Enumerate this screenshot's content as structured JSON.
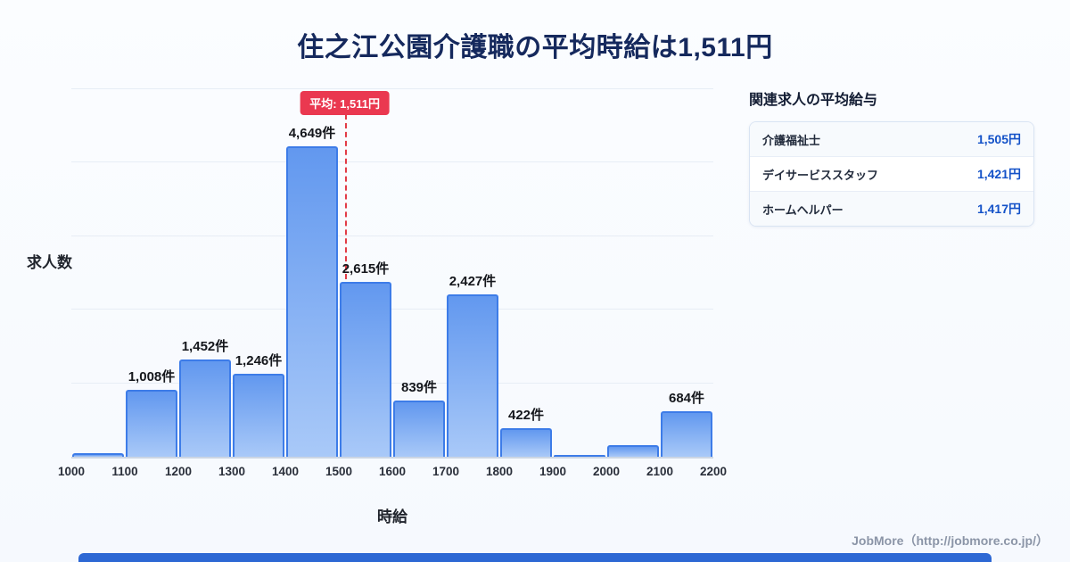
{
  "title": "住之江公園介護職の平均時給は1,511円",
  "chart_data": {
    "type": "bar",
    "title": "住之江公園介護職の平均時給は1,511円",
    "xlabel": "時給",
    "ylabel": "求人数",
    "x_ticks": [
      1000,
      1100,
      1200,
      1300,
      1400,
      1500,
      1600,
      1700,
      1800,
      1900,
      2000,
      2100,
      2200
    ],
    "bins": [
      "1000-1100",
      "1100-1200",
      "1200-1300",
      "1300-1400",
      "1400-1500",
      "1500-1600",
      "1600-1700",
      "1700-1800",
      "1800-1900",
      "1900-2000",
      "2000-2100",
      "2100-2200"
    ],
    "values": [
      50,
      1008,
      1452,
      1246,
      4649,
      2615,
      839,
      2427,
      422,
      30,
      170,
      684
    ],
    "bar_labels": [
      null,
      "1,008件",
      "1,452件",
      "1,246件",
      "4,649件",
      "2,615件",
      "839件",
      "2,427件",
      "422件",
      null,
      null,
      "684件"
    ],
    "ylim": [
      0,
      5500
    ],
    "grid": true,
    "legend": "none",
    "average": {
      "value": 1511,
      "label": "平均: 1,511円"
    }
  },
  "side_panel": {
    "heading": "関連求人の平均給与",
    "rows": [
      {
        "label": "介護福祉士",
        "value": "1,505円"
      },
      {
        "label": "デイサービススタッフ",
        "value": "1,421円"
      },
      {
        "label": "ホームヘルパー",
        "value": "1,417円"
      }
    ]
  },
  "footer": {
    "credit": "JobMore（http://jobmore.co.jp/）"
  },
  "colors": {
    "title": "#15295d",
    "bar_fill_top": "#6298ef",
    "bar_fill_bottom": "#a9c9f8",
    "bar_border": "#3d7ce8",
    "average_line": "#e23c47",
    "average_badge_bg": "#ea3850",
    "card_value": "#1452c8",
    "bottom_bar": "#2d68d4",
    "background": "#f8fbff"
  }
}
